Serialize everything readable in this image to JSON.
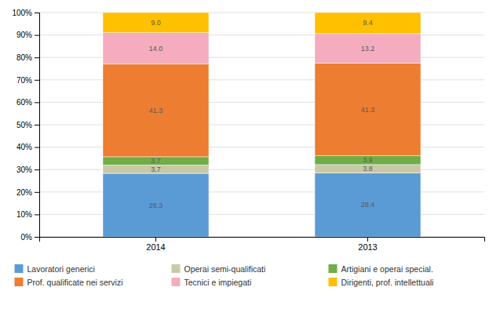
{
  "chart_data": {
    "type": "bar",
    "stacked": true,
    "categories": [
      "2014",
      "2013"
    ],
    "series": [
      {
        "name": "Lavoratori generici",
        "color": "#5B9BD5",
        "values": [
          28.3,
          28.4
        ]
      },
      {
        "name": "Operai semi-qualificati",
        "color": "#C9C9A7",
        "values": [
          3.7,
          3.8
        ]
      },
      {
        "name": "Artigiani e operai special.",
        "color": "#70AD47",
        "values": [
          3.7,
          3.9
        ]
      },
      {
        "name": "Prof. qualificate nei servizi",
        "color": "#ED7D31",
        "values": [
          41.3,
          41.3
        ]
      },
      {
        "name": "Tecnici e impiegati",
        "color": "#F4ACBE",
        "values": [
          14.0,
          13.2
        ],
        "value_labels": [
          "14.0",
          "13.2"
        ]
      },
      {
        "name": "Dirigenti, prof. intellettuali",
        "color": "#FFC000",
        "values": [
          9.0,
          9.4
        ],
        "value_labels": [
          "9.0",
          "9.4"
        ]
      }
    ],
    "ylim": [
      0,
      100
    ],
    "yticks": [
      {
        "value": 0,
        "label": "0%"
      },
      {
        "value": 10,
        "label": "10%"
      },
      {
        "value": 20,
        "label": "20%"
      },
      {
        "value": 30,
        "label": "30%"
      },
      {
        "value": 40,
        "label": "40%"
      },
      {
        "value": 50,
        "label": "50%"
      },
      {
        "value": 60,
        "label": "60%"
      },
      {
        "value": 70,
        "label": "70%"
      },
      {
        "value": 80,
        "label": "80%"
      },
      {
        "value": 90,
        "label": "90%"
      },
      {
        "value": 100,
        "label": "100%"
      }
    ],
    "grid": true,
    "legend": "bottom",
    "data_labels": true
  }
}
